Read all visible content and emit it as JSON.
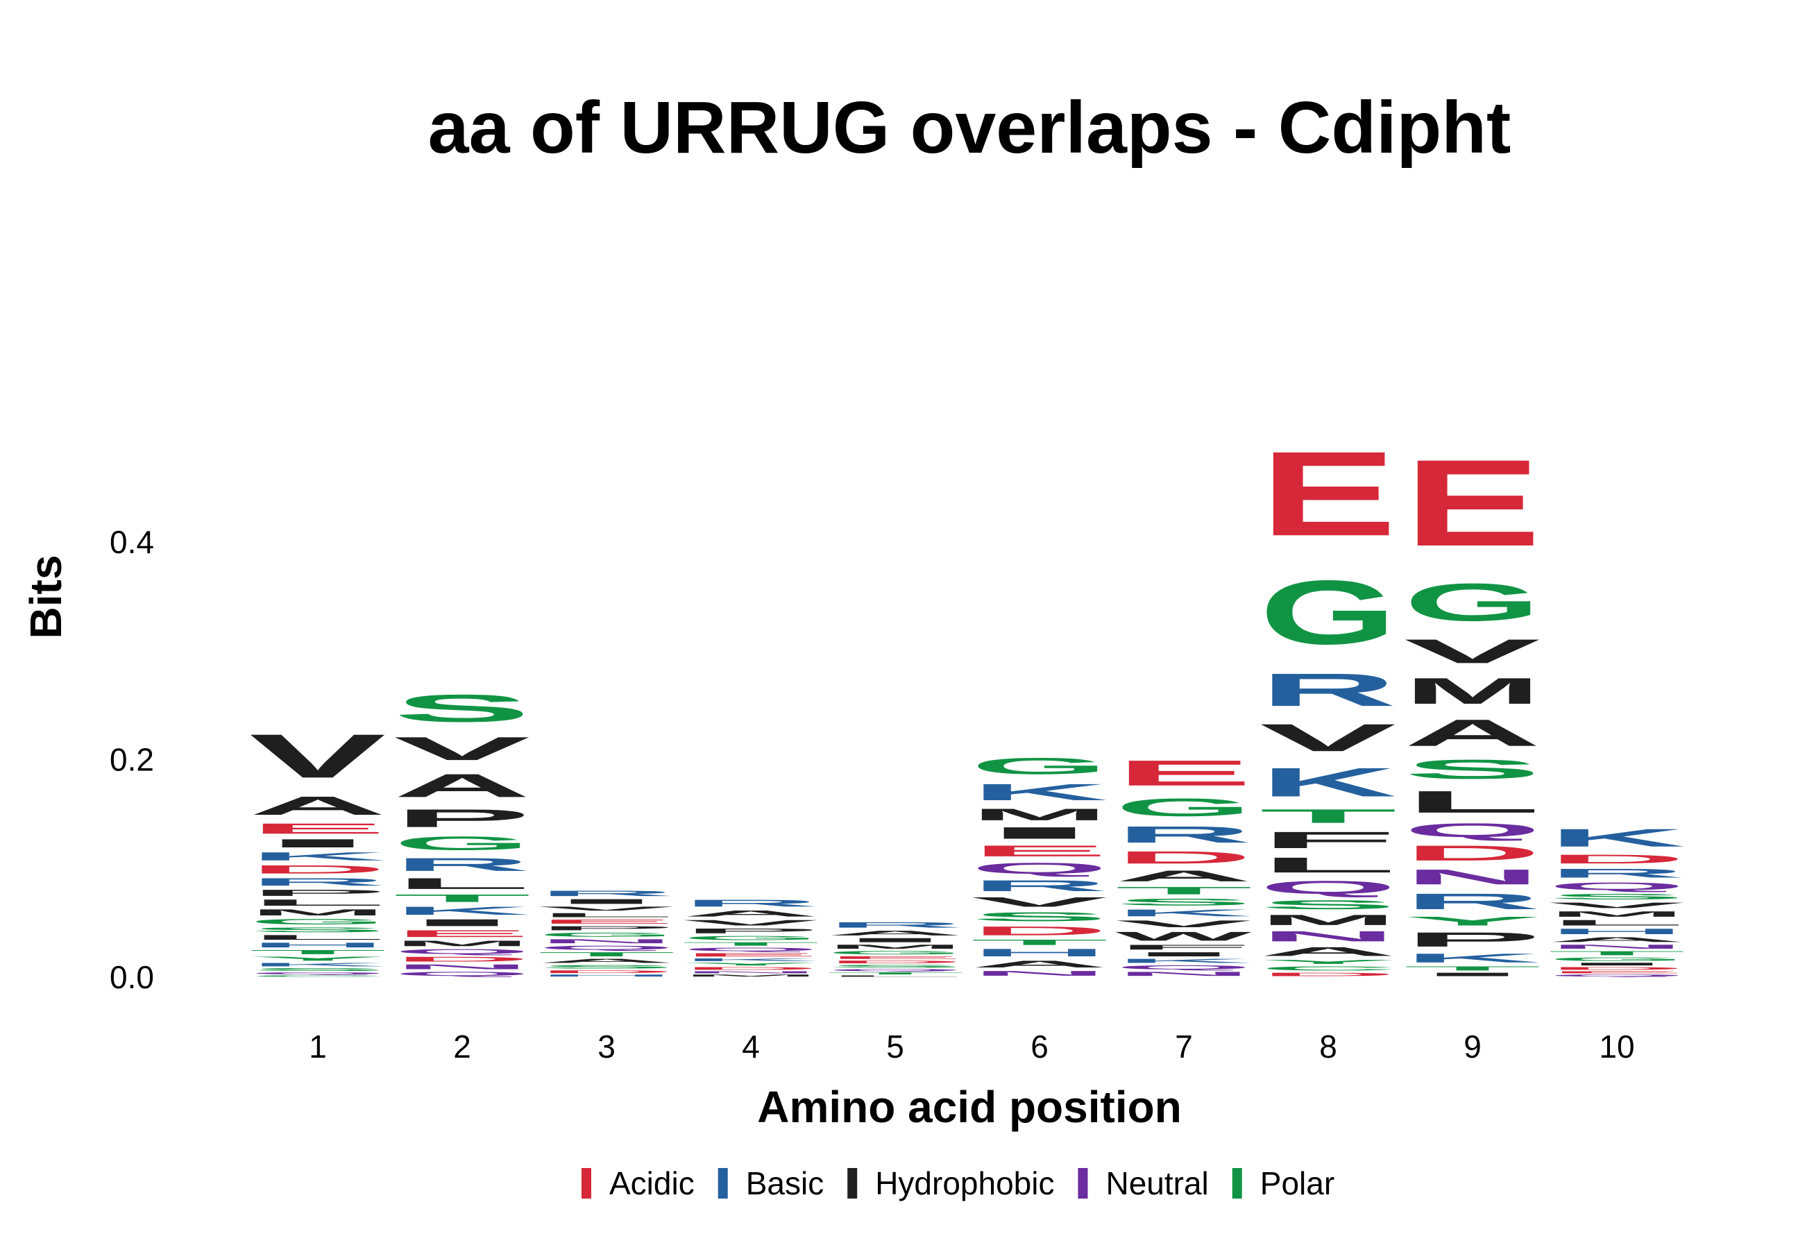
{
  "chart_data": {
    "type": "sequence-logo",
    "title": "aa of URRUG overlaps - Cdipht",
    "xlabel": "Amino acid position",
    "ylabel": "Bits",
    "ylim": [
      0,
      0.56
    ],
    "y_ticks": [
      "0.0",
      "0.2",
      "0.4"
    ],
    "grid": false,
    "legend_position": "bottom",
    "color_scheme": {
      "Acidic": "#d62839",
      "Basic": "#25609e",
      "Hydrophobic": "#1f1f1f",
      "Neutral": "#6a2c9e",
      "Polar": "#109444"
    },
    "legend": [
      {
        "label": "Acidic",
        "class": "Acidic"
      },
      {
        "label": "Basic",
        "class": "Basic"
      },
      {
        "label": "Hydrophobic",
        "class": "Hydrophobic"
      },
      {
        "label": "Neutral",
        "class": "Neutral"
      },
      {
        "label": "Polar",
        "class": "Polar"
      }
    ],
    "residue_class": {
      "D": "Acidic",
      "E": "Acidic",
      "H": "Basic",
      "K": "Basic",
      "R": "Basic",
      "A": "Hydrophobic",
      "F": "Hydrophobic",
      "I": "Hydrophobic",
      "L": "Hydrophobic",
      "M": "Hydrophobic",
      "P": "Hydrophobic",
      "V": "Hydrophobic",
      "W": "Hydrophobic",
      "N": "Neutral",
      "Q": "Neutral",
      "C": "Polar",
      "G": "Polar",
      "S": "Polar",
      "T": "Polar",
      "Y": "Polar"
    },
    "positions": [
      {
        "label": "1",
        "stack": [
          [
            "C",
            0.002
          ],
          [
            "Q",
            0.003
          ],
          [
            "S",
            0.004
          ],
          [
            "K",
            0.005
          ],
          [
            "Y",
            0.006
          ],
          [
            "T",
            0.006
          ],
          [
            "H",
            0.007
          ],
          [
            "L",
            0.007
          ],
          [
            "S",
            0.007
          ],
          [
            "G",
            0.008
          ],
          [
            "M",
            0.009
          ],
          [
            "L",
            0.009
          ],
          [
            "P",
            0.009
          ],
          [
            "R",
            0.011
          ],
          [
            "D",
            0.012
          ],
          [
            "K",
            0.012
          ],
          [
            "I",
            0.012
          ],
          [
            "E",
            0.015
          ],
          [
            "A",
            0.027
          ],
          [
            "V",
            0.064
          ]
        ]
      },
      {
        "label": "2",
        "stack": [
          [
            "Q",
            0.006
          ],
          [
            "N",
            0.007
          ],
          [
            "D",
            0.007
          ],
          [
            "Q",
            0.007
          ],
          [
            "M",
            0.008
          ],
          [
            "E",
            0.01
          ],
          [
            "I",
            0.01
          ],
          [
            "K",
            0.012
          ],
          [
            "T",
            0.011
          ],
          [
            "L",
            0.016
          ],
          [
            "R",
            0.019
          ],
          [
            "G",
            0.02
          ],
          [
            "P",
            0.026
          ],
          [
            "A",
            0.034
          ],
          [
            "V",
            0.034
          ],
          [
            "S",
            0.04
          ]
        ]
      },
      {
        "label": "3",
        "stack": [
          [
            "H",
            0.003
          ],
          [
            "D",
            0.004
          ],
          [
            "S",
            0.005
          ],
          [
            "A",
            0.006
          ],
          [
            "T",
            0.006
          ],
          [
            "Q",
            0.006
          ],
          [
            "N",
            0.006
          ],
          [
            "G",
            0.006
          ],
          [
            "P",
            0.006
          ],
          [
            "E",
            0.006
          ],
          [
            "L",
            0.006
          ],
          [
            "V",
            0.006
          ],
          [
            "I",
            0.007
          ],
          [
            "R",
            0.008
          ]
        ]
      },
      {
        "label": "4",
        "stack": [
          [
            "M",
            0.003
          ],
          [
            "N",
            0.003
          ],
          [
            "D",
            0.004
          ],
          [
            "Y",
            0.004
          ],
          [
            "K",
            0.004
          ],
          [
            "E",
            0.005
          ],
          [
            "Q",
            0.005
          ],
          [
            "T",
            0.005
          ],
          [
            "G",
            0.006
          ],
          [
            "P",
            0.007
          ],
          [
            "V",
            0.008
          ],
          [
            "A",
            0.009
          ],
          [
            "R",
            0.01
          ]
        ]
      },
      {
        "label": "5",
        "stack": [
          [
            "L",
            0.002
          ],
          [
            "T",
            0.003
          ],
          [
            "Q",
            0.003
          ],
          [
            "S",
            0.004
          ],
          [
            "D",
            0.004
          ],
          [
            "E",
            0.004
          ],
          [
            "G",
            0.005
          ],
          [
            "M",
            0.006
          ],
          [
            "I",
            0.006
          ],
          [
            "A",
            0.007
          ],
          [
            "R",
            0.008
          ]
        ]
      },
      {
        "label": "6",
        "stack": [
          [
            "N",
            0.007
          ],
          [
            "A",
            0.01
          ],
          [
            "H",
            0.011
          ],
          [
            "T",
            0.008
          ],
          [
            "D",
            0.013
          ],
          [
            "S",
            0.013
          ],
          [
            "V",
            0.014
          ],
          [
            "R",
            0.016
          ],
          [
            "Q",
            0.016
          ],
          [
            "E",
            0.016
          ],
          [
            "I",
            0.017
          ],
          [
            "M",
            0.017
          ],
          [
            "K",
            0.024
          ],
          [
            "G",
            0.024
          ]
        ]
      },
      {
        "label": "7",
        "stack": [
          [
            "N",
            0.006
          ],
          [
            "Q",
            0.006
          ],
          [
            "K",
            0.006
          ],
          [
            "I",
            0.006
          ],
          [
            "F",
            0.007
          ],
          [
            "W",
            0.013
          ],
          [
            "V",
            0.01
          ],
          [
            "K",
            0.01
          ],
          [
            "S",
            0.01
          ],
          [
            "T",
            0.011
          ],
          [
            "A",
            0.016
          ],
          [
            "D",
            0.018
          ],
          [
            "R",
            0.024
          ],
          [
            "G",
            0.026
          ],
          [
            "E",
            0.037
          ]
        ]
      },
      {
        "label": "8",
        "stack": [
          [
            "D",
            0.005
          ],
          [
            "C",
            0.006
          ],
          [
            "Y",
            0.006
          ],
          [
            "A",
            0.013
          ],
          [
            "N",
            0.015
          ],
          [
            "M",
            0.015
          ],
          [
            "S",
            0.013
          ],
          [
            "Q",
            0.019
          ],
          [
            "L",
            0.022
          ],
          [
            "F",
            0.024
          ],
          [
            "T",
            0.02
          ],
          [
            "K",
            0.042
          ],
          [
            "V",
            0.04
          ],
          [
            "R",
            0.048
          ],
          [
            "G",
            0.094
          ],
          [
            "E",
            0.124
          ]
        ]
      },
      {
        "label": "9",
        "stack": [
          [
            "I",
            0.005
          ],
          [
            "T",
            0.006
          ],
          [
            "K",
            0.013
          ],
          [
            "P",
            0.021
          ],
          [
            "Y",
            0.013
          ],
          [
            "R",
            0.023
          ],
          [
            "N",
            0.022
          ],
          [
            "D",
            0.022
          ],
          [
            "Q",
            0.02
          ],
          [
            "L",
            0.032
          ],
          [
            "S",
            0.028
          ],
          [
            "A",
            0.039
          ],
          [
            "M",
            0.038
          ],
          [
            "V",
            0.035
          ],
          [
            "G",
            0.055
          ],
          [
            "E",
            0.127
          ]
        ]
      },
      {
        "label": "10",
        "stack": [
          [
            "Q",
            0.003
          ],
          [
            "E",
            0.003
          ],
          [
            "D",
            0.004
          ],
          [
            "I",
            0.004
          ],
          [
            "G",
            0.005
          ],
          [
            "T",
            0.006
          ],
          [
            "N",
            0.006
          ],
          [
            "A",
            0.007
          ],
          [
            "H",
            0.008
          ],
          [
            "L",
            0.008
          ],
          [
            "M",
            0.008
          ],
          [
            "V",
            0.008
          ],
          [
            "S",
            0.008
          ],
          [
            "Q",
            0.011
          ],
          [
            "R",
            0.013
          ],
          [
            "D",
            0.013
          ],
          [
            "K",
            0.026
          ]
        ]
      }
    ]
  }
}
